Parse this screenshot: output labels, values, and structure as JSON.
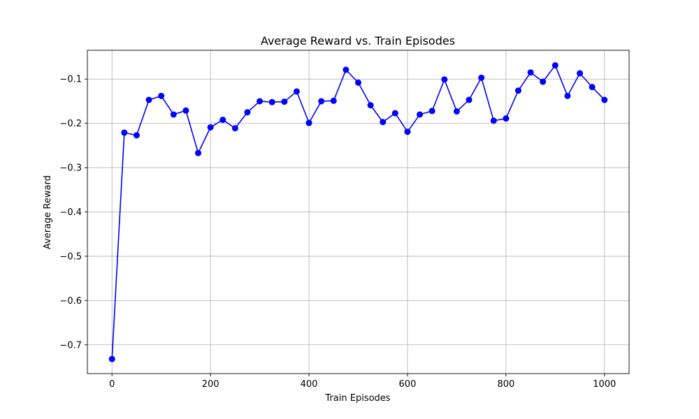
{
  "chart_data": {
    "type": "line",
    "title": "Average Reward vs. Train Episodes",
    "xlabel": "Train Episodes",
    "ylabel": "Average Reward",
    "xlim": [
      -50,
      1050
    ],
    "ylim": [
      -0.765,
      -0.035
    ],
    "x_ticks": [
      0,
      200,
      400,
      600,
      800,
      1000
    ],
    "x_tick_labels": [
      "0",
      "200",
      "400",
      "600",
      "800",
      "1000"
    ],
    "y_ticks": [
      -0.7,
      -0.6,
      -0.5,
      -0.4,
      -0.3,
      -0.2,
      -0.1
    ],
    "y_tick_labels": [
      "−0.7",
      "−0.6",
      "−0.5",
      "−0.4",
      "−0.3",
      "−0.2",
      "−0.1"
    ],
    "grid": true,
    "legend": "none",
    "series": [
      {
        "color": "#0000ff",
        "marker": "circle",
        "x": [
          0,
          25,
          50,
          75,
          100,
          125,
          150,
          175,
          200,
          225,
          250,
          275,
          300,
          325,
          350,
          375,
          400,
          425,
          450,
          475,
          500,
          525,
          550,
          575,
          600,
          625,
          650,
          675,
          700,
          725,
          750,
          775,
          800,
          825,
          850,
          875,
          900,
          925,
          950,
          975,
          1000
        ],
        "y": [
          -0.732,
          -0.221,
          -0.227,
          -0.147,
          -0.138,
          -0.18,
          -0.171,
          -0.267,
          -0.209,
          -0.192,
          -0.211,
          -0.175,
          -0.15,
          -0.152,
          -0.151,
          -0.128,
          -0.199,
          -0.15,
          -0.149,
          -0.079,
          -0.108,
          -0.159,
          -0.197,
          -0.177,
          -0.219,
          -0.18,
          -0.172,
          -0.101,
          -0.173,
          -0.147,
          -0.097,
          -0.194,
          -0.189,
          -0.126,
          -0.085,
          -0.106,
          -0.069,
          -0.138,
          -0.087,
          -0.118,
          -0.147
        ]
      }
    ]
  }
}
